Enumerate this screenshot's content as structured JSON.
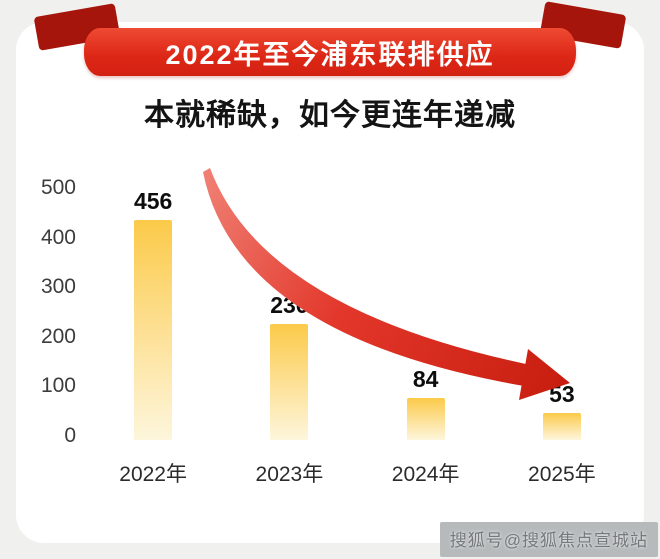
{
  "banner": {
    "title": "2022年至今浦东联排供应"
  },
  "subtitle": "本就稀缺，如今更连年递减",
  "watermark": "搜狐号@搜狐焦点宣城站",
  "colors": {
    "banner_red": "#dd2716",
    "ribbon_fold_red": "#a6150c",
    "bar_gold_top": "#fbca49",
    "bar_cream_bottom": "#fdf6dc",
    "arrow_red": "#d6281a",
    "text_dark": "#141414"
  },
  "chart_data": {
    "type": "bar",
    "title": "2022年至今浦东联排供应",
    "subtitle": "本就稀缺，如今更连年递减",
    "categories": [
      "2022年",
      "2023年",
      "2024年",
      "2025年"
    ],
    "values": [
      456,
      230,
      84,
      53
    ],
    "xlabel": "",
    "ylabel": "",
    "ylim": [
      0,
      500
    ],
    "yticks": [
      500,
      400,
      300,
      200,
      100,
      0
    ],
    "grid": false,
    "legend": false,
    "trend_annotation": "连年递减（红色下降箭头）"
  }
}
